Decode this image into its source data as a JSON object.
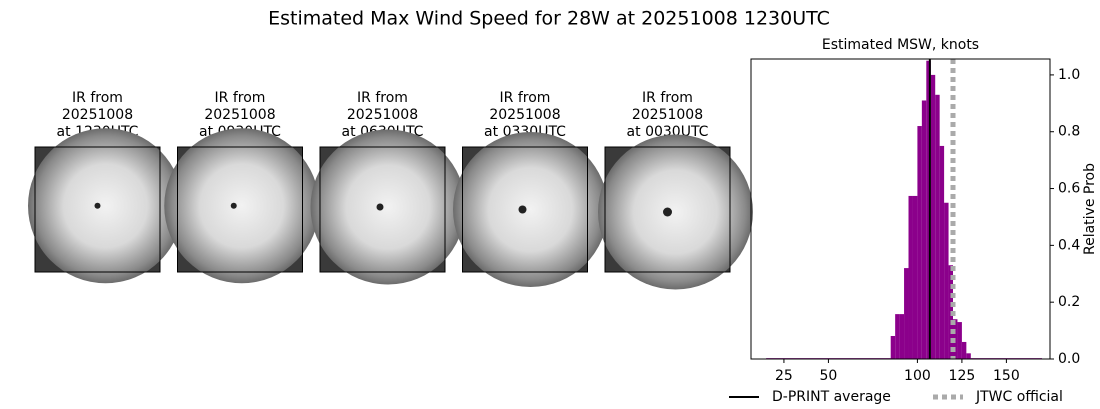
{
  "figure": {
    "title": "Estimated Max Wind Speed for 28W at 20251008 1230UTC",
    "panels": [
      {
        "lines": [
          "IR from",
          "20251008",
          "at 1230UTC"
        ]
      },
      {
        "lines": [
          "IR from",
          "20251008",
          "at 0930UTC"
        ]
      },
      {
        "lines": [
          "IR from",
          "20251008",
          "at 0630UTC"
        ]
      },
      {
        "lines": [
          "IR from",
          "20251008",
          "at 0330UTC"
        ]
      },
      {
        "lines": [
          "IR from",
          "20251008",
          "at 0030UTC"
        ]
      }
    ]
  },
  "chart_data": {
    "type": "histogram",
    "title": "Estimated MSW, knots",
    "ylabel": "Relative Prob",
    "y_axis_side": "right",
    "bins": [
      15,
      85,
      87.5,
      90,
      92.5,
      95,
      97.5,
      100,
      102.5,
      105,
      107.5,
      110,
      112.5,
      115,
      117.5,
      120,
      122.5,
      125,
      127.5,
      130,
      170
    ],
    "counts": [
      0.003,
      0.081,
      0.158,
      0.158,
      0.32,
      0.574,
      0.574,
      0.82,
      0.91,
      1.05,
      1.0,
      0.93,
      0.75,
      0.55,
      0.33,
      0.14,
      0.13,
      0.06,
      0.02,
      0.003
    ],
    "color": "#8b008b",
    "xlim": [
      6.5,
      174.5
    ],
    "xticks": [
      25,
      50,
      100,
      125,
      150
    ],
    "ylim": [
      0,
      1.056
    ],
    "yticks": [
      {
        "value": 0,
        "label": "0.0"
      },
      {
        "value": 0.2,
        "label": "0.2"
      },
      {
        "value": 0.4,
        "label": "0.4"
      },
      {
        "value": 0.6,
        "label": "0.6"
      },
      {
        "value": 0.8,
        "label": "0.8"
      },
      {
        "value": 1.0,
        "label": "1.0"
      }
    ],
    "lines": [
      {
        "name": "D-PRINT average",
        "value": 107,
        "color": "#000000",
        "style": "solid"
      },
      {
        "name": "JTWC official",
        "value": 120,
        "color": "#aaaaaa",
        "style": "dotted"
      }
    ],
    "legend": "below"
  }
}
